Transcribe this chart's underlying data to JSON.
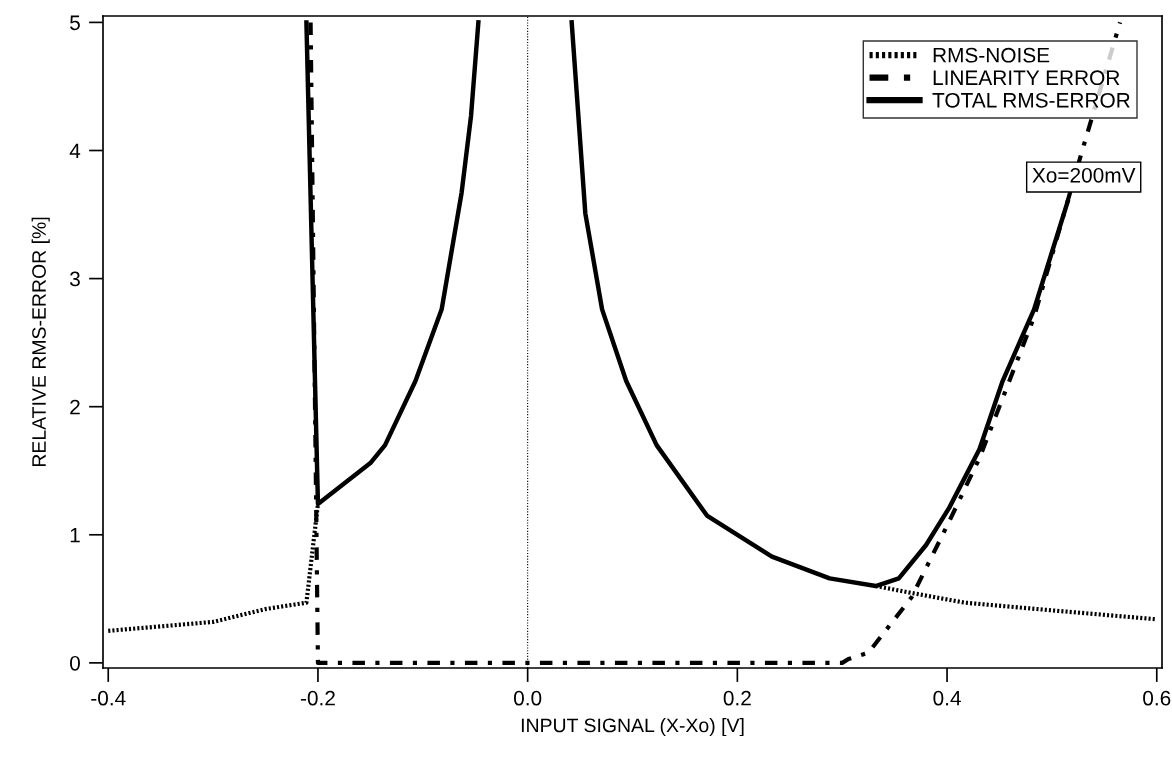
{
  "chart_data": {
    "type": "line",
    "xlabel": "INPUT SIGNAL (X-Xo) [V]",
    "ylabel": "RELATIVE RMS-ERROR [%]",
    "xlim": [
      -0.405,
      0.605
    ],
    "ylim": [
      -0.04,
      5.05
    ],
    "xticks": [
      -0.4,
      -0.2,
      {
        "value": 0.0,
        "label": "0.0"
      },
      0.2,
      0.4,
      0.6
    ],
    "yticks": [
      0,
      1,
      2,
      3,
      4,
      5
    ],
    "grid": false,
    "legend": "top right",
    "marker": "none",
    "ref_lines": [
      {
        "axis": "x",
        "value": 0.0,
        "color": "#000000",
        "line_style": "dotted"
      }
    ],
    "annotations": [
      "Xo=200mV"
    ],
    "series": [
      {
        "name": "RMS-NOISE",
        "color": "#000000",
        "line_style": "dotted",
        "x": [
          -0.4,
          -0.3,
          -0.25,
          -0.211,
          -0.2,
          null,
          0.332,
          0.37,
          0.417,
          0.5,
          0.6
        ],
        "values": [
          0.25,
          0.32,
          0.42,
          0.47,
          1.24,
          null,
          0.6,
          0.54,
          0.47,
          0.41,
          0.34
        ]
      },
      {
        "name": "LINEARITY ERROR",
        "color": "#000000",
        "line_style": "dashdot",
        "x": [
          -0.207,
          -0.2,
          -0.19,
          0.3,
          0.306,
          0.325,
          0.366,
          0.4,
          0.431,
          0.483,
          0.53,
          0.565
        ],
        "values": [
          5.0,
          0.0,
          0.0,
          0.0,
          0.03,
          0.08,
          0.51,
          1.07,
          1.6,
          2.7,
          4.03,
          5.0
        ]
      },
      {
        "name": "TOTAL RMS-ERROR",
        "color": "#000000",
        "line_style": "solid",
        "x": [
          -0.211,
          -0.2,
          -0.15,
          -0.136,
          -0.107,
          -0.082,
          -0.063,
          -0.054,
          -0.047,
          null,
          0.042,
          0.055,
          0.071,
          0.094,
          0.123,
          0.171,
          0.233,
          0.288,
          0.332,
          0.354,
          0.38,
          0.402,
          0.431,
          0.453,
          0.483,
          0.515
        ],
        "values": [
          5.0,
          1.24,
          1.56,
          1.7,
          2.2,
          2.76,
          3.67,
          4.27,
          5.0,
          null,
          5.0,
          3.51,
          2.76,
          2.2,
          1.7,
          1.15,
          0.83,
          0.66,
          0.6,
          0.66,
          0.92,
          1.21,
          1.67,
          2.2,
          2.76,
          3.6
        ]
      }
    ]
  }
}
